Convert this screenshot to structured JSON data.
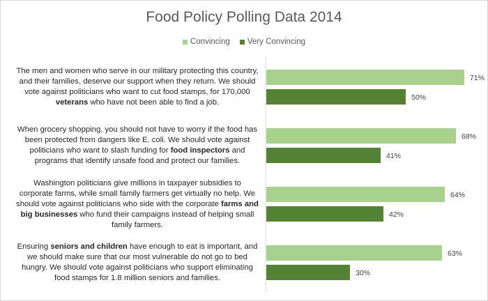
{
  "chart_data": {
    "type": "bar",
    "orientation": "horizontal",
    "title": "Food Policy Polling Data 2014",
    "legend_position": "top",
    "grid": false,
    "xlim": [
      0,
      75
    ],
    "categories": [
      {
        "parts": [
          {
            "text": "The men and women who serve in our military protecting this country, and their families, deserve our support when they return. We should vote against politicians who want to cut food stamps, for 170,000 ",
            "bold": false
          },
          {
            "text": "veterans",
            "bold": true
          },
          {
            "text": " who have not been able to find a job.",
            "bold": false
          }
        ]
      },
      {
        "parts": [
          {
            "text": "When grocery shopping, you should not have to worry if the food has been protected from dangers like E. coli. We should vote against politicians who want to slash funding for ",
            "bold": false
          },
          {
            "text": "food inspectors",
            "bold": true
          },
          {
            "text": " and programs that identify unsafe food and protect our families.",
            "bold": false
          }
        ]
      },
      {
        "parts": [
          {
            "text": "Washington politicians give millions in taxpayer subsidies to corporate farms, while small family farmers get virtually no help. We should vote against politicians who side with the corporate ",
            "bold": false
          },
          {
            "text": "farms and big businesses",
            "bold": true
          },
          {
            "text": " who fund their campaigns instead of helping small family farmers.",
            "bold": false
          }
        ]
      },
      {
        "parts": [
          {
            "text": "Ensuring ",
            "bold": false
          },
          {
            "text": "seniors and children",
            "bold": true
          },
          {
            "text": " have enough to eat is important, and we should make sure that our most vulnerable do not go to bed hungry. We should vote against politicians who support eliminating food stamps for 1.8 million seniors and families.",
            "bold": false
          }
        ]
      }
    ],
    "series": [
      {
        "name": "Convincing",
        "color": "#a9d18e",
        "values": [
          71,
          68,
          64,
          63
        ],
        "labels": [
          "71%",
          "68%",
          "64%",
          "63%"
        ]
      },
      {
        "name": "Very Convincing",
        "color": "#548235",
        "values": [
          50,
          41,
          42,
          30
        ],
        "labels": [
          "50%",
          "41%",
          "42%",
          "30%"
        ]
      }
    ]
  }
}
